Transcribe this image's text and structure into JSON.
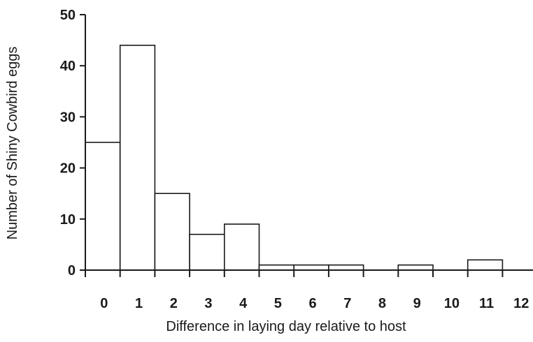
{
  "chart_data": {
    "type": "bar",
    "title": "",
    "xlabel": "Difference in laying day relative to host",
    "ylabel": "Number of Shiny Cowbird eggs",
    "categories": [
      "0",
      "1",
      "2",
      "3",
      "4",
      "5",
      "6",
      "7",
      "8",
      "9",
      "10",
      "11",
      "12"
    ],
    "values": [
      25,
      44,
      15,
      7,
      9,
      1,
      1,
      1,
      0,
      1,
      0,
      2,
      0
    ],
    "ylim": [
      0,
      50
    ],
    "yticks": [
      "0",
      "10",
      "20",
      "30",
      "40",
      "50"
    ],
    "grid": false,
    "legend": "none",
    "colors": {
      "bar_fill": "#ffffff",
      "bar_stroke": "#1a1a1a",
      "axis": "#1a1a1a"
    }
  }
}
